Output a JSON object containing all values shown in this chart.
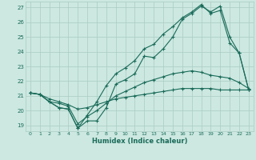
{
  "xlabel": "Humidex (Indice chaleur)",
  "xlim": [
    -0.5,
    23.5
  ],
  "ylim": [
    18.6,
    27.4
  ],
  "yticks": [
    19,
    20,
    21,
    22,
    23,
    24,
    25,
    26,
    27
  ],
  "xticks": [
    0,
    1,
    2,
    3,
    4,
    5,
    6,
    7,
    8,
    9,
    10,
    11,
    12,
    13,
    14,
    15,
    16,
    17,
    18,
    19,
    20,
    21,
    22,
    23
  ],
  "bg_color": "#cce8e0",
  "line_color": "#1a6b5a",
  "grid_color": "#aaccc4",
  "line1_x": [
    0,
    1,
    2,
    3,
    4,
    5,
    6,
    7,
    8,
    9,
    10,
    11,
    12,
    13,
    14,
    15,
    16,
    17,
    18,
    19,
    20,
    21,
    22,
    23
  ],
  "line1_y": [
    21.2,
    21.1,
    20.6,
    20.2,
    20.1,
    18.8,
    19.3,
    19.3,
    20.2,
    21.8,
    22.1,
    22.5,
    23.7,
    23.6,
    24.2,
    25.0,
    26.2,
    26.6,
    27.1,
    26.7,
    27.1,
    25.0,
    23.9,
    21.4
  ],
  "line2_x": [
    0,
    1,
    2,
    3,
    4,
    5,
    6,
    7,
    8,
    9,
    10,
    11,
    12,
    13,
    14,
    15,
    16,
    17,
    18,
    19,
    20,
    21,
    22,
    23
  ],
  "line2_y": [
    21.2,
    21.1,
    20.6,
    20.2,
    20.1,
    18.8,
    19.7,
    20.6,
    21.7,
    22.5,
    22.9,
    23.4,
    24.2,
    24.5,
    25.2,
    25.7,
    26.3,
    26.7,
    27.2,
    26.6,
    26.8,
    24.6,
    23.9,
    21.4
  ],
  "line3_x": [
    0,
    1,
    2,
    3,
    4,
    5,
    6,
    7,
    8,
    9,
    10,
    11,
    12,
    13,
    14,
    15,
    16,
    17,
    18,
    19,
    20,
    21,
    22,
    23
  ],
  "line3_y": [
    21.2,
    21.1,
    20.6,
    20.5,
    20.3,
    19.1,
    19.6,
    20.0,
    20.5,
    21.0,
    21.3,
    21.6,
    21.9,
    22.1,
    22.3,
    22.5,
    22.6,
    22.7,
    22.6,
    22.4,
    22.3,
    22.2,
    21.9,
    21.5
  ],
  "line4_x": [
    0,
    1,
    2,
    3,
    4,
    5,
    6,
    7,
    8,
    9,
    10,
    11,
    12,
    13,
    14,
    15,
    16,
    17,
    18,
    19,
    20,
    21,
    22,
    23
  ],
  "line4_y": [
    21.2,
    21.1,
    20.8,
    20.6,
    20.4,
    20.1,
    20.2,
    20.4,
    20.6,
    20.8,
    20.9,
    21.0,
    21.1,
    21.2,
    21.3,
    21.4,
    21.5,
    21.5,
    21.5,
    21.5,
    21.4,
    21.4,
    21.4,
    21.4
  ]
}
